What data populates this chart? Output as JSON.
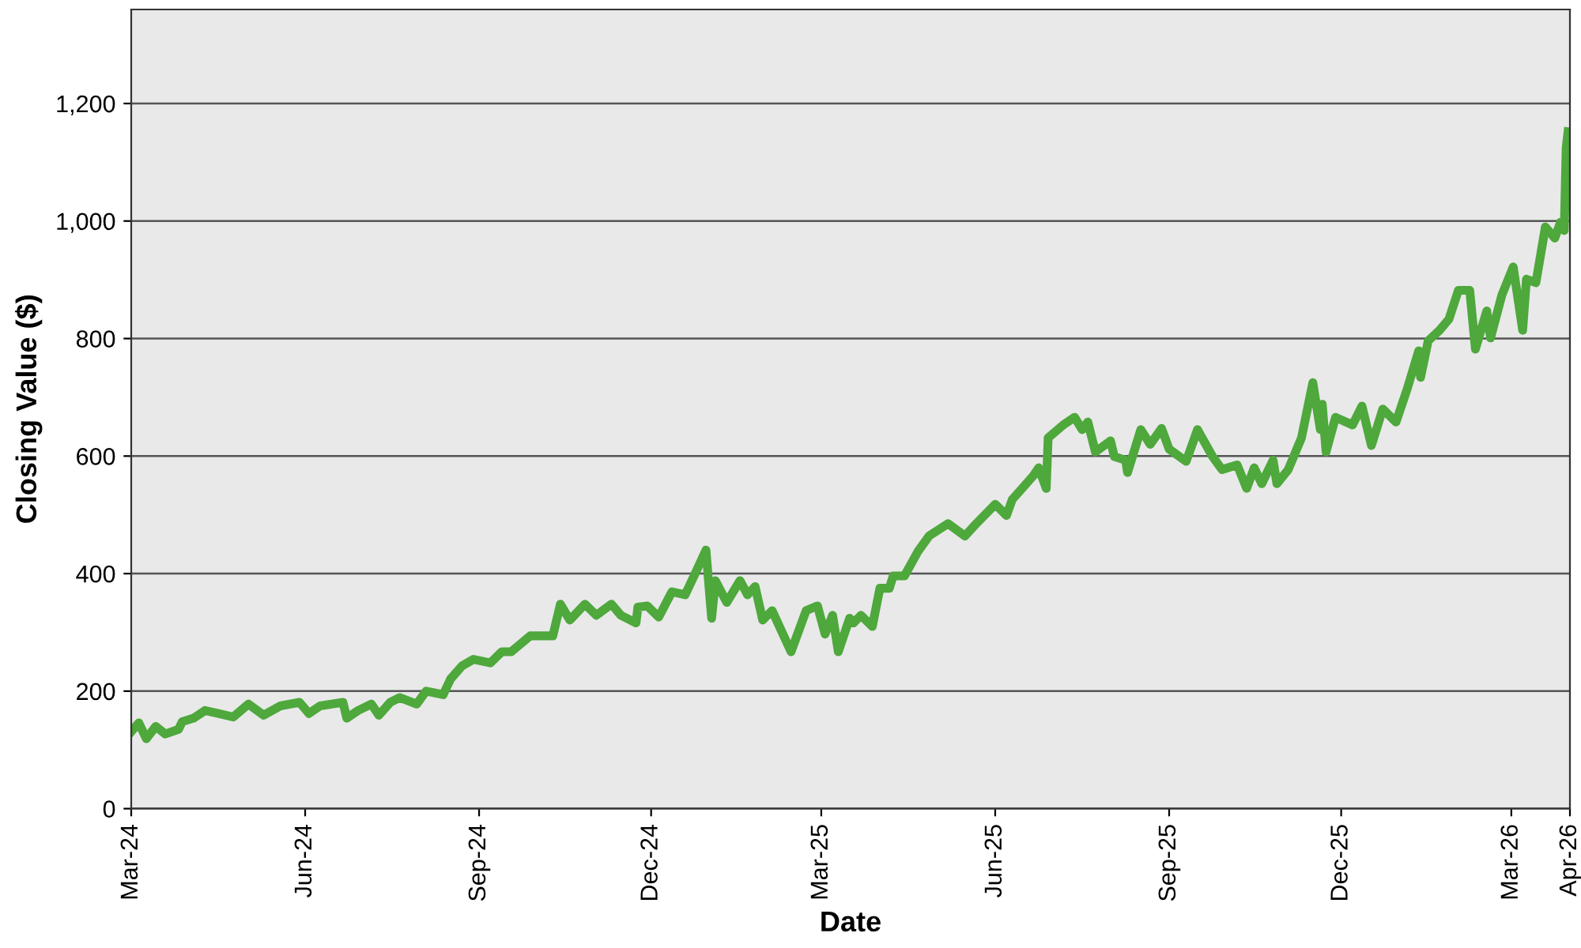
{
  "chart_data": {
    "type": "line",
    "xlabel": "Date",
    "ylabel": "Closing Value ($)",
    "xlim": [
      "2024-03-01",
      "2026-04-01"
    ],
    "xticks": [
      {
        "value": "2024-03-01",
        "label": "Mar-24"
      },
      {
        "value": "2024-06-01",
        "label": "Jun-24"
      },
      {
        "value": "2024-09-01",
        "label": "Sep-24"
      },
      {
        "value": "2024-12-01",
        "label": "Dec-24"
      },
      {
        "value": "2025-03-01",
        "label": "Mar-25"
      },
      {
        "value": "2025-06-01",
        "label": "Jun-25"
      },
      {
        "value": "2025-09-01",
        "label": "Sep-25"
      },
      {
        "value": "2025-12-01",
        "label": "Dec-25"
      },
      {
        "value": "2026-03-01",
        "label": "Mar-26"
      },
      {
        "value": "2026-04-01",
        "label": "Apr-26"
      }
    ],
    "ylim": [
      0,
      1360
    ],
    "yticks": [
      {
        "value": 0,
        "label": "0"
      },
      {
        "value": 200,
        "label": "200"
      },
      {
        "value": 400,
        "label": "400"
      },
      {
        "value": 600,
        "label": "600"
      },
      {
        "value": 800,
        "label": "800"
      },
      {
        "value": 1000,
        "label": "1,000"
      },
      {
        "value": 1200,
        "label": "1,200"
      }
    ],
    "grid": "y",
    "marker": "none",
    "line_style": "solid",
    "series": [
      {
        "color": "#4ea83c",
        "x": [
          "2024-03-01",
          "2024-03-05",
          "2024-03-09",
          "2024-03-14",
          "2024-03-19",
          "2024-03-26",
          "2024-03-28",
          "2024-04-03",
          "2024-04-09",
          "2024-04-16",
          "2024-04-24",
          "2024-05-02",
          "2024-05-10",
          "2024-05-19",
          "2024-05-29",
          "2024-06-03",
          "2024-06-09",
          "2024-06-21",
          "2024-06-23",
          "2024-06-29",
          "2024-07-06",
          "2024-07-10",
          "2024-07-16",
          "2024-07-21",
          "2024-07-30",
          "2024-08-04",
          "2024-08-13",
          "2024-08-17",
          "2024-08-23",
          "2024-08-29",
          "2024-09-07",
          "2024-09-13",
          "2024-09-18",
          "2024-09-28",
          "2024-10-10",
          "2024-10-14",
          "2024-10-19",
          "2024-10-27",
          "2024-11-02",
          "2024-11-10",
          "2024-11-15",
          "2024-11-23",
          "2024-11-24",
          "2024-11-29",
          "2024-12-05",
          "2024-12-12",
          "2024-12-19",
          "2024-12-25",
          "2024-12-30",
          "2025-01-02",
          "2025-01-04",
          "2025-01-10",
          "2025-01-17",
          "2025-01-21",
          "2025-01-25",
          "2025-01-29",
          "2025-02-03",
          "2025-02-13",
          "2025-02-21",
          "2025-02-27",
          "2025-03-03",
          "2025-03-07",
          "2025-03-10",
          "2025-03-16",
          "2025-03-18",
          "2025-03-22",
          "2025-03-28",
          "2025-04-01",
          "2025-04-06",
          "2025-04-08",
          "2025-04-14",
          "2025-04-21",
          "2025-04-27",
          "2025-05-07",
          "2025-05-16",
          "2025-05-22",
          "2025-06-01",
          "2025-06-07",
          "2025-06-10",
          "2025-06-21",
          "2025-06-24",
          "2025-06-28",
          "2025-06-29",
          "2025-07-07",
          "2025-07-13",
          "2025-07-17",
          "2025-07-20",
          "2025-07-24",
          "2025-08-01",
          "2025-08-03",
          "2025-08-09",
          "2025-08-10",
          "2025-08-17",
          "2025-08-22",
          "2025-08-28",
          "2025-09-01",
          "2025-09-10",
          "2025-09-16",
          "2025-09-24",
          "2025-09-29",
          "2025-10-07",
          "2025-10-12",
          "2025-10-16",
          "2025-10-20",
          "2025-10-26",
          "2025-10-28",
          "2025-11-03",
          "2025-11-10",
          "2025-11-16",
          "2025-11-20",
          "2025-11-21",
          "2025-11-23",
          "2025-11-28",
          "2025-12-07",
          "2025-12-12",
          "2025-12-17",
          "2025-12-23",
          "2025-12-30",
          "2026-01-05",
          "2026-01-11",
          "2026-01-12",
          "2026-01-16",
          "2026-01-22",
          "2026-01-27",
          "2026-02-01",
          "2026-02-07",
          "2026-02-10",
          "2026-02-16",
          "2026-02-18",
          "2026-02-24",
          "2026-03-02",
          "2026-03-07",
          "2026-03-09",
          "2026-03-14",
          "2026-03-19",
          "2026-03-24",
          "2026-03-27",
          "2026-03-29",
          "2026-03-30",
          "2026-03-31"
        ],
        "values": [
          131,
          146,
          119,
          140,
          127,
          135,
          148,
          154,
          167,
          162,
          156,
          178,
          159,
          175,
          181,
          162,
          175,
          181,
          154,
          167,
          178,
          159,
          181,
          189,
          178,
          200,
          194,
          221,
          243,
          254,
          248,
          267,
          267,
          294,
          294,
          348,
          321,
          348,
          329,
          348,
          329,
          316,
          343,
          345,
          326,
          369,
          364,
          405,
          440,
          324,
          388,
          351,
          388,
          364,
          378,
          321,
          337,
          267,
          337,
          345,
          297,
          329,
          267,
          324,
          316,
          329,
          310,
          375,
          375,
          396,
          396,
          437,
          464,
          485,
          464,
          485,
          518,
          499,
          526,
          566,
          580,
          545,
          631,
          653,
          666,
          645,
          658,
          607,
          626,
          599,
          593,
          572,
          645,
          620,
          647,
          612,
          591,
          645,
          599,
          577,
          585,
          545,
          580,
          553,
          593,
          553,
          577,
          631,
          725,
          645,
          688,
          607,
          666,
          653,
          685,
          618,
          680,
          658,
          715,
          779,
          734,
          796,
          814,
          833,
          882,
          882,
          782,
          847,
          801,
          874,
          922,
          814,
          901,
          895,
          990,
          971,
          998,
          984,
          1125,
          1152
        ]
      }
    ]
  }
}
